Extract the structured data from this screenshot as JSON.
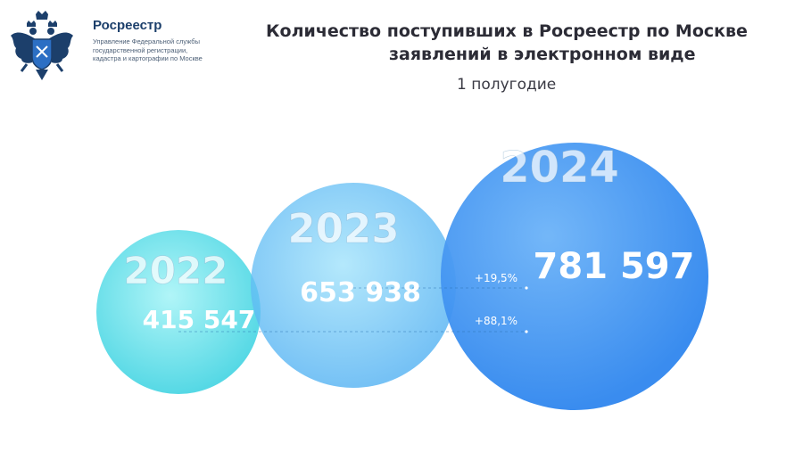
{
  "header": {
    "org_name": "Росреестр",
    "org_subtitle": [
      "Управление Федеральной службы",
      "государственной регистрации,",
      "кадастра и картографии по Москве"
    ],
    "title_line1": "Количество поступивших в Росреестр по Москве",
    "title_line2": "заявлений в электронном виде",
    "subtitle": "1 полугодие"
  },
  "chart_data": {
    "type": "bubble",
    "title": "Количество поступивших в Росреестр по Москве заявлений в электронном виде",
    "subtitle": "1 полугодие",
    "categories": [
      "2022",
      "2023",
      "2024"
    ],
    "values": [
      415547,
      653938,
      781597
    ],
    "value_labels": [
      "415 547",
      "653 938",
      "781 597"
    ],
    "colors": [
      "#5fe4ec",
      "#62c4f6",
      "#3d96f3"
    ],
    "annotations": [
      {
        "from": "2023",
        "to": "2024",
        "label": "+19,5%"
      },
      {
        "from": "2022",
        "to": "2024",
        "label": "+88,1%"
      }
    ]
  }
}
